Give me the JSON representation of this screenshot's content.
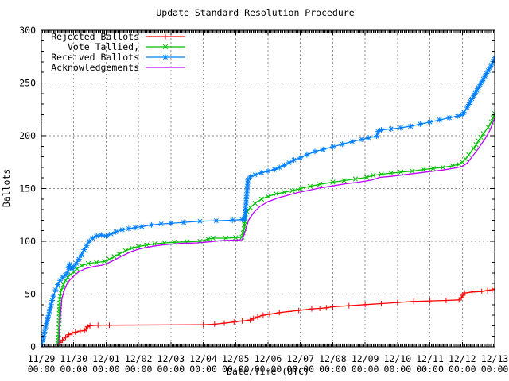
{
  "chart_data": {
    "type": "line",
    "title": "Update Standard Resolution Procedure",
    "xlabel": "Date/Time (UTC)",
    "ylabel": "Ballots",
    "ylim": [
      0,
      300
    ],
    "xlim_days": [
      0,
      14
    ],
    "y_ticks": [
      0,
      50,
      100,
      150,
      200,
      250,
      300
    ],
    "x_ticks": [
      {
        "date": "11/29",
        "time": "00:00"
      },
      {
        "date": "11/30",
        "time": "00:00"
      },
      {
        "date": "12/01",
        "time": "00:00"
      },
      {
        "date": "12/02",
        "time": "00:00"
      },
      {
        "date": "12/03",
        "time": "00:00"
      },
      {
        "date": "12/04",
        "time": "00:00"
      },
      {
        "date": "12/05",
        "time": "00:00"
      },
      {
        "date": "12/06",
        "time": "00:00"
      },
      {
        "date": "12/07",
        "time": "00:00"
      },
      {
        "date": "12/08",
        "time": "00:00"
      },
      {
        "date": "12/09",
        "time": "00:00"
      },
      {
        "date": "12/10",
        "time": "00:00"
      },
      {
        "date": "12/11",
        "time": "00:00"
      },
      {
        "date": "12/12",
        "time": "00:00"
      },
      {
        "date": "12/13",
        "time": "00:00"
      }
    ],
    "grid": true,
    "grid_color": "#909090",
    "border_color": "#000000",
    "legend_position": "top-left",
    "legend": [
      {
        "label": "Rejected Ballots",
        "color": "#ff0000",
        "marker": "plus"
      },
      {
        "label": "Vote Tallied,",
        "color": "#00c000",
        "marker": "cross"
      },
      {
        "label": "Received Ballots",
        "color": "#0080ff",
        "marker": "star"
      },
      {
        "label": "Acknowledgements",
        "color": "#c000ff",
        "marker": "none"
      }
    ],
    "x_unit": "days since 11/29 00:00 UTC",
    "series": [
      {
        "name": "Rejected Ballots",
        "color": "#ff0000",
        "marker": "plus",
        "points": [
          [
            0,
            0
          ],
          [
            0.5,
            0
          ],
          [
            0.54,
            2
          ],
          [
            0.58,
            4
          ],
          [
            0.65,
            6.5
          ],
          [
            0.75,
            9
          ],
          [
            0.85,
            11.5
          ],
          [
            0.95,
            13
          ],
          [
            1.05,
            14
          ],
          [
            1.2,
            15
          ],
          [
            1.33,
            15.5
          ],
          [
            1.38,
            17
          ],
          [
            1.43,
            19
          ],
          [
            1.5,
            20
          ],
          [
            1.75,
            20.5
          ],
          [
            2.1,
            20.5
          ],
          [
            5.0,
            21
          ],
          [
            5.35,
            21.5
          ],
          [
            5.65,
            22.5
          ],
          [
            5.95,
            23.5
          ],
          [
            6.2,
            24.5
          ],
          [
            6.45,
            25.5
          ],
          [
            6.55,
            27
          ],
          [
            6.68,
            28.5
          ],
          [
            6.85,
            30
          ],
          [
            7.05,
            31
          ],
          [
            7.35,
            32.5
          ],
          [
            7.65,
            33.5
          ],
          [
            7.95,
            34.5
          ],
          [
            8.35,
            36
          ],
          [
            8.6,
            36.5
          ],
          [
            8.8,
            37
          ],
          [
            9.0,
            38
          ],
          [
            9.5,
            39
          ],
          [
            10.0,
            40
          ],
          [
            10.5,
            41
          ],
          [
            11.0,
            42
          ],
          [
            11.5,
            43
          ],
          [
            12.0,
            43.5
          ],
          [
            12.5,
            44
          ],
          [
            12.9,
            44.5
          ],
          [
            12.97,
            46.5
          ],
          [
            13.02,
            49
          ],
          [
            13.07,
            51
          ],
          [
            13.3,
            52
          ],
          [
            13.6,
            52.5
          ],
          [
            13.78,
            53.5
          ],
          [
            13.92,
            54
          ],
          [
            14.0,
            55
          ]
        ]
      },
      {
        "name": "Vote Tallied,",
        "color": "#00c000",
        "marker": "cross",
        "points": [
          [
            0,
            0
          ],
          [
            0.5,
            0
          ],
          [
            0.54,
            15
          ],
          [
            0.56,
            35
          ],
          [
            0.58,
            48
          ],
          [
            0.62,
            54
          ],
          [
            0.68,
            59
          ],
          [
            0.75,
            63
          ],
          [
            0.82,
            66
          ],
          [
            0.9,
            68.5
          ],
          [
            1.0,
            71
          ],
          [
            1.1,
            74
          ],
          [
            1.25,
            77
          ],
          [
            1.45,
            79
          ],
          [
            1.7,
            80
          ],
          [
            1.95,
            81
          ],
          [
            2.1,
            83
          ],
          [
            2.25,
            85.5
          ],
          [
            2.4,
            88
          ],
          [
            2.6,
            91
          ],
          [
            2.8,
            93.5
          ],
          [
            3.0,
            95
          ],
          [
            3.25,
            96.5
          ],
          [
            3.5,
            97.5
          ],
          [
            3.8,
            98.5
          ],
          [
            4.1,
            99
          ],
          [
            4.5,
            99.5
          ],
          [
            4.9,
            100
          ],
          [
            5.15,
            102
          ],
          [
            5.3,
            103
          ],
          [
            5.7,
            103
          ],
          [
            6.0,
            103.5
          ],
          [
            6.2,
            104
          ],
          [
            6.26,
            112
          ],
          [
            6.3,
            122
          ],
          [
            6.36,
            128
          ],
          [
            6.45,
            132
          ],
          [
            6.6,
            136
          ],
          [
            6.8,
            140
          ],
          [
            7.0,
            142.5
          ],
          [
            7.25,
            145
          ],
          [
            7.5,
            146.5
          ],
          [
            7.75,
            148
          ],
          [
            8.0,
            150
          ],
          [
            8.3,
            152
          ],
          [
            8.6,
            154
          ],
          [
            9.0,
            156
          ],
          [
            9.35,
            157.5
          ],
          [
            9.7,
            159
          ],
          [
            10.05,
            160.5
          ],
          [
            10.25,
            162.5
          ],
          [
            10.5,
            163.5
          ],
          [
            10.8,
            164.5
          ],
          [
            11.1,
            165.5
          ],
          [
            11.45,
            166.5
          ],
          [
            11.8,
            168
          ],
          [
            12.1,
            169
          ],
          [
            12.4,
            170
          ],
          [
            12.7,
            171.5
          ],
          [
            12.9,
            173
          ],
          [
            13.0,
            175
          ],
          [
            13.1,
            178
          ],
          [
            13.2,
            182
          ],
          [
            13.35,
            188
          ],
          [
            13.5,
            195
          ],
          [
            13.65,
            202
          ],
          [
            13.8,
            208
          ],
          [
            13.9,
            213
          ],
          [
            14.0,
            221
          ]
        ]
      },
      {
        "name": "Received Ballots",
        "color": "#0080ff",
        "marker": "star",
        "points": [
          [
            0,
            0
          ],
          [
            0.05,
            6
          ],
          [
            0.1,
            14
          ],
          [
            0.16,
            22
          ],
          [
            0.23,
            31
          ],
          [
            0.3,
            40
          ],
          [
            0.37,
            48
          ],
          [
            0.44,
            54
          ],
          [
            0.51,
            59
          ],
          [
            0.58,
            63
          ],
          [
            0.66,
            66
          ],
          [
            0.74,
            68
          ],
          [
            0.8,
            70
          ],
          [
            0.84,
            75
          ],
          [
            0.87,
            78
          ],
          [
            0.9,
            74
          ],
          [
            0.95,
            74
          ],
          [
            1.0,
            76
          ],
          [
            1.08,
            79
          ],
          [
            1.16,
            83
          ],
          [
            1.24,
            87
          ],
          [
            1.32,
            92
          ],
          [
            1.4,
            96
          ],
          [
            1.48,
            100
          ],
          [
            1.58,
            103
          ],
          [
            1.7,
            105
          ],
          [
            1.85,
            106
          ],
          [
            2.0,
            105
          ],
          [
            2.15,
            107
          ],
          [
            2.3,
            109
          ],
          [
            2.5,
            111
          ],
          [
            2.7,
            112
          ],
          [
            2.9,
            113
          ],
          [
            3.1,
            114
          ],
          [
            3.4,
            115.5
          ],
          [
            3.7,
            116.5
          ],
          [
            4.0,
            117
          ],
          [
            4.4,
            118
          ],
          [
            4.9,
            119
          ],
          [
            5.4,
            119.5
          ],
          [
            5.9,
            120
          ],
          [
            6.2,
            120.5
          ],
          [
            6.28,
            121
          ],
          [
            6.33,
            140
          ],
          [
            6.38,
            158
          ],
          [
            6.45,
            161
          ],
          [
            6.6,
            163
          ],
          [
            6.8,
            165
          ],
          [
            7.0,
            166.5
          ],
          [
            7.2,
            168
          ],
          [
            7.35,
            170
          ],
          [
            7.5,
            172
          ],
          [
            7.65,
            174.5
          ],
          [
            7.8,
            177
          ],
          [
            8.0,
            179
          ],
          [
            8.2,
            182
          ],
          [
            8.45,
            185
          ],
          [
            8.7,
            187
          ],
          [
            9.0,
            189.5
          ],
          [
            9.3,
            192
          ],
          [
            9.6,
            194.5
          ],
          [
            9.9,
            196.5
          ],
          [
            10.1,
            198
          ],
          [
            10.35,
            199.5
          ],
          [
            10.4,
            204
          ],
          [
            10.5,
            205.5
          ],
          [
            10.8,
            206.5
          ],
          [
            11.1,
            207.5
          ],
          [
            11.4,
            209
          ],
          [
            11.7,
            211
          ],
          [
            12.0,
            213
          ],
          [
            12.3,
            215
          ],
          [
            12.6,
            217
          ],
          [
            12.85,
            218.5
          ],
          [
            13.0,
            220
          ],
          [
            13.05,
            222
          ],
          [
            13.15,
            227
          ],
          [
            13.3,
            235
          ],
          [
            13.45,
            243
          ],
          [
            13.6,
            251
          ],
          [
            13.75,
            259
          ],
          [
            13.9,
            267
          ],
          [
            14.0,
            274
          ]
        ]
      },
      {
        "name": "Acknowledgements",
        "color": "#c000ff",
        "marker": "none",
        "points": [
          [
            0,
            0
          ],
          [
            0.53,
            0
          ],
          [
            0.56,
            12
          ],
          [
            0.59,
            30
          ],
          [
            0.63,
            45
          ],
          [
            0.7,
            53
          ],
          [
            0.78,
            59
          ],
          [
            0.87,
            63
          ],
          [
            1.0,
            67
          ],
          [
            1.15,
            71
          ],
          [
            1.35,
            74
          ],
          [
            1.6,
            76
          ],
          [
            1.9,
            77.5
          ],
          [
            2.1,
            80
          ],
          [
            2.3,
            83
          ],
          [
            2.55,
            87
          ],
          [
            2.8,
            90.5
          ],
          [
            3.0,
            92.5
          ],
          [
            3.3,
            94.5
          ],
          [
            3.6,
            96
          ],
          [
            3.9,
            97
          ],
          [
            4.3,
            98
          ],
          [
            4.8,
            98.5
          ],
          [
            5.2,
            99.5
          ],
          [
            5.5,
            100.5
          ],
          [
            5.9,
            101
          ],
          [
            6.2,
            101.5
          ],
          [
            6.3,
            110
          ],
          [
            6.4,
            120
          ],
          [
            6.55,
            127
          ],
          [
            6.75,
            133
          ],
          [
            7.0,
            137.5
          ],
          [
            7.3,
            141
          ],
          [
            7.6,
            143.5
          ],
          [
            7.9,
            146
          ],
          [
            8.2,
            148
          ],
          [
            8.6,
            150.5
          ],
          [
            9.0,
            152.5
          ],
          [
            9.4,
            154.5
          ],
          [
            9.8,
            156
          ],
          [
            10.2,
            158
          ],
          [
            10.45,
            160.5
          ],
          [
            10.8,
            161.5
          ],
          [
            11.2,
            163
          ],
          [
            11.6,
            164.5
          ],
          [
            12.0,
            166
          ],
          [
            12.4,
            167.5
          ],
          [
            12.8,
            169.5
          ],
          [
            13.0,
            171
          ],
          [
            13.15,
            174
          ],
          [
            13.3,
            180
          ],
          [
            13.5,
            188
          ],
          [
            13.7,
            197
          ],
          [
            13.85,
            205
          ],
          [
            14.0,
            217
          ]
        ]
      }
    ]
  }
}
